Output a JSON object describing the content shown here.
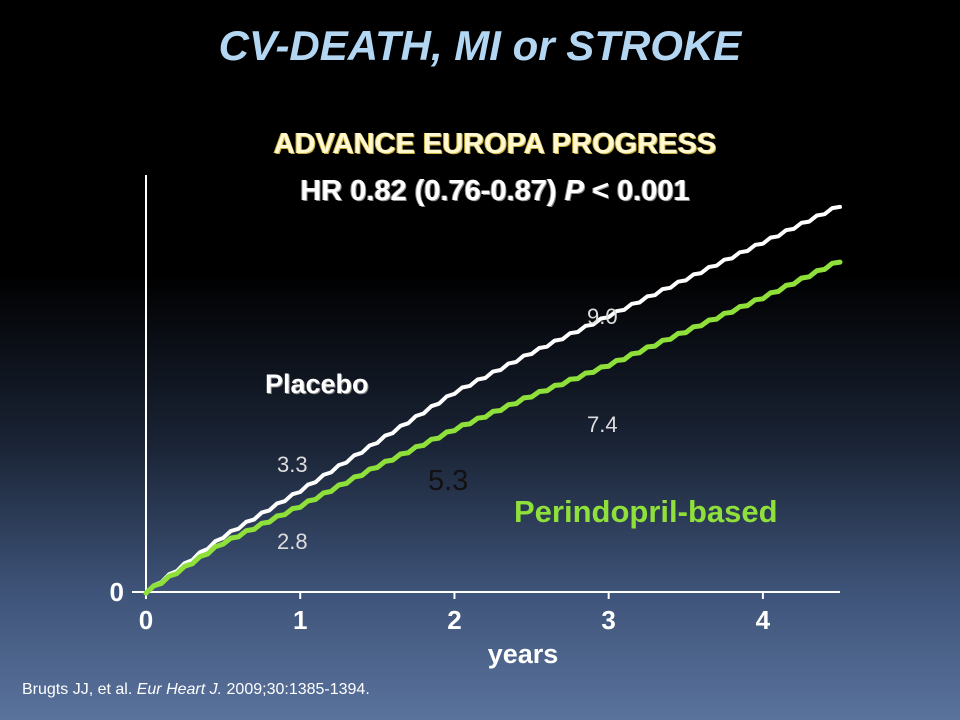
{
  "slide": {
    "title": "CV-DEATH, MI  or STROKE",
    "subtitle_trials": "ADVANCE   EUROPA   PROGRESS",
    "subtitle_hr_prefix": "HR 0.82 (0.76-0.87)",
    "subtitle_p_symbol": "P",
    "subtitle_p_value": "< 0.001",
    "citation_authors": "Brugts JJ, et al.",
    "citation_journal": "Eur Heart J.",
    "citation_details": "2009;30:1385-1394."
  },
  "colors": {
    "placebo": "#ffffff",
    "perindopril": "#8fe03a",
    "axis": "#ffffff",
    "title": "#b3d7f2"
  },
  "chart_data": {
    "type": "line",
    "xlabel": "years",
    "ylabel": "",
    "xlim": [
      0,
      4.5
    ],
    "ylim": [
      0,
      13.6
    ],
    "x_ticks": [
      0,
      1,
      2,
      3,
      4
    ],
    "y_ticks": [
      0
    ],
    "series": [
      {
        "name": "Placebo",
        "x": [
          0,
          0.5,
          1,
          1.5,
          2,
          2.5,
          3,
          3.5,
          4,
          4.5
        ],
        "y": [
          0,
          1.8,
          3.3,
          4.9,
          6.5,
          7.8,
          9.0,
          10.2,
          11.4,
          12.6
        ]
      },
      {
        "name": "Perindopril-based",
        "x": [
          0,
          0.5,
          1,
          1.5,
          2,
          2.5,
          3,
          3.5,
          4,
          4.5
        ],
        "y": [
          0,
          1.6,
          2.8,
          4.1,
          5.3,
          6.4,
          7.4,
          8.5,
          9.6,
          10.8
        ]
      }
    ],
    "annotations": [
      {
        "text": "9.0",
        "x": 3.0,
        "y": 9.0,
        "series": "Placebo"
      },
      {
        "text": "3.3",
        "x": 1.0,
        "y": 3.3,
        "series": "Placebo"
      },
      {
        "text": "7.4",
        "x": 3.0,
        "y": 7.4,
        "series": "Perindopril-based"
      },
      {
        "text": "2.8",
        "x": 1.0,
        "y": 2.8,
        "series": "Perindopril-based"
      },
      {
        "text": "5.3",
        "x": 2.0,
        "y": 5.3,
        "series": "Perindopril-based"
      }
    ]
  }
}
